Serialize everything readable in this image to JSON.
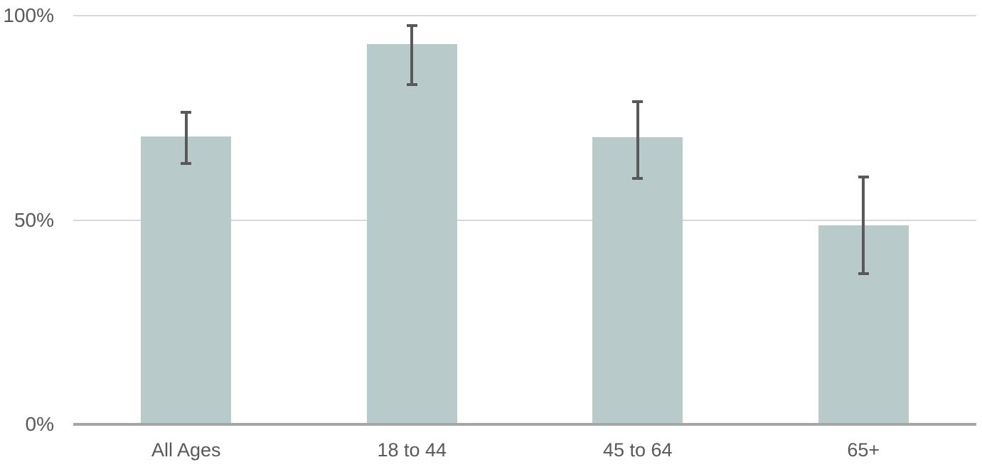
{
  "chart_data": {
    "type": "bar",
    "title": "",
    "xlabel": "",
    "ylabel": "",
    "categories": [
      "All Ages",
      "18 to 44",
      "45 to 64",
      "65+"
    ],
    "values": [
      70.4,
      93.0,
      70.3,
      48.7
    ],
    "error_low": [
      63.9,
      83.1,
      60.2,
      36.9
    ],
    "error_high": [
      76.3,
      97.6,
      79.0,
      60.5
    ],
    "ylim": [
      0,
      100
    ],
    "yticks": [
      {
        "value": 0,
        "label": "0%"
      },
      {
        "value": 50,
        "label": "50%"
      },
      {
        "value": 100,
        "label": "100%"
      }
    ],
    "grid": "horizontal",
    "legend": "none",
    "colors": {
      "bar_fill": "#b9cacb",
      "error_bar": "#595959",
      "gridline": "#d9d9d9",
      "axis_line": "#a6a6a6",
      "tick_text": "#595959",
      "background": "#ffffff"
    }
  }
}
